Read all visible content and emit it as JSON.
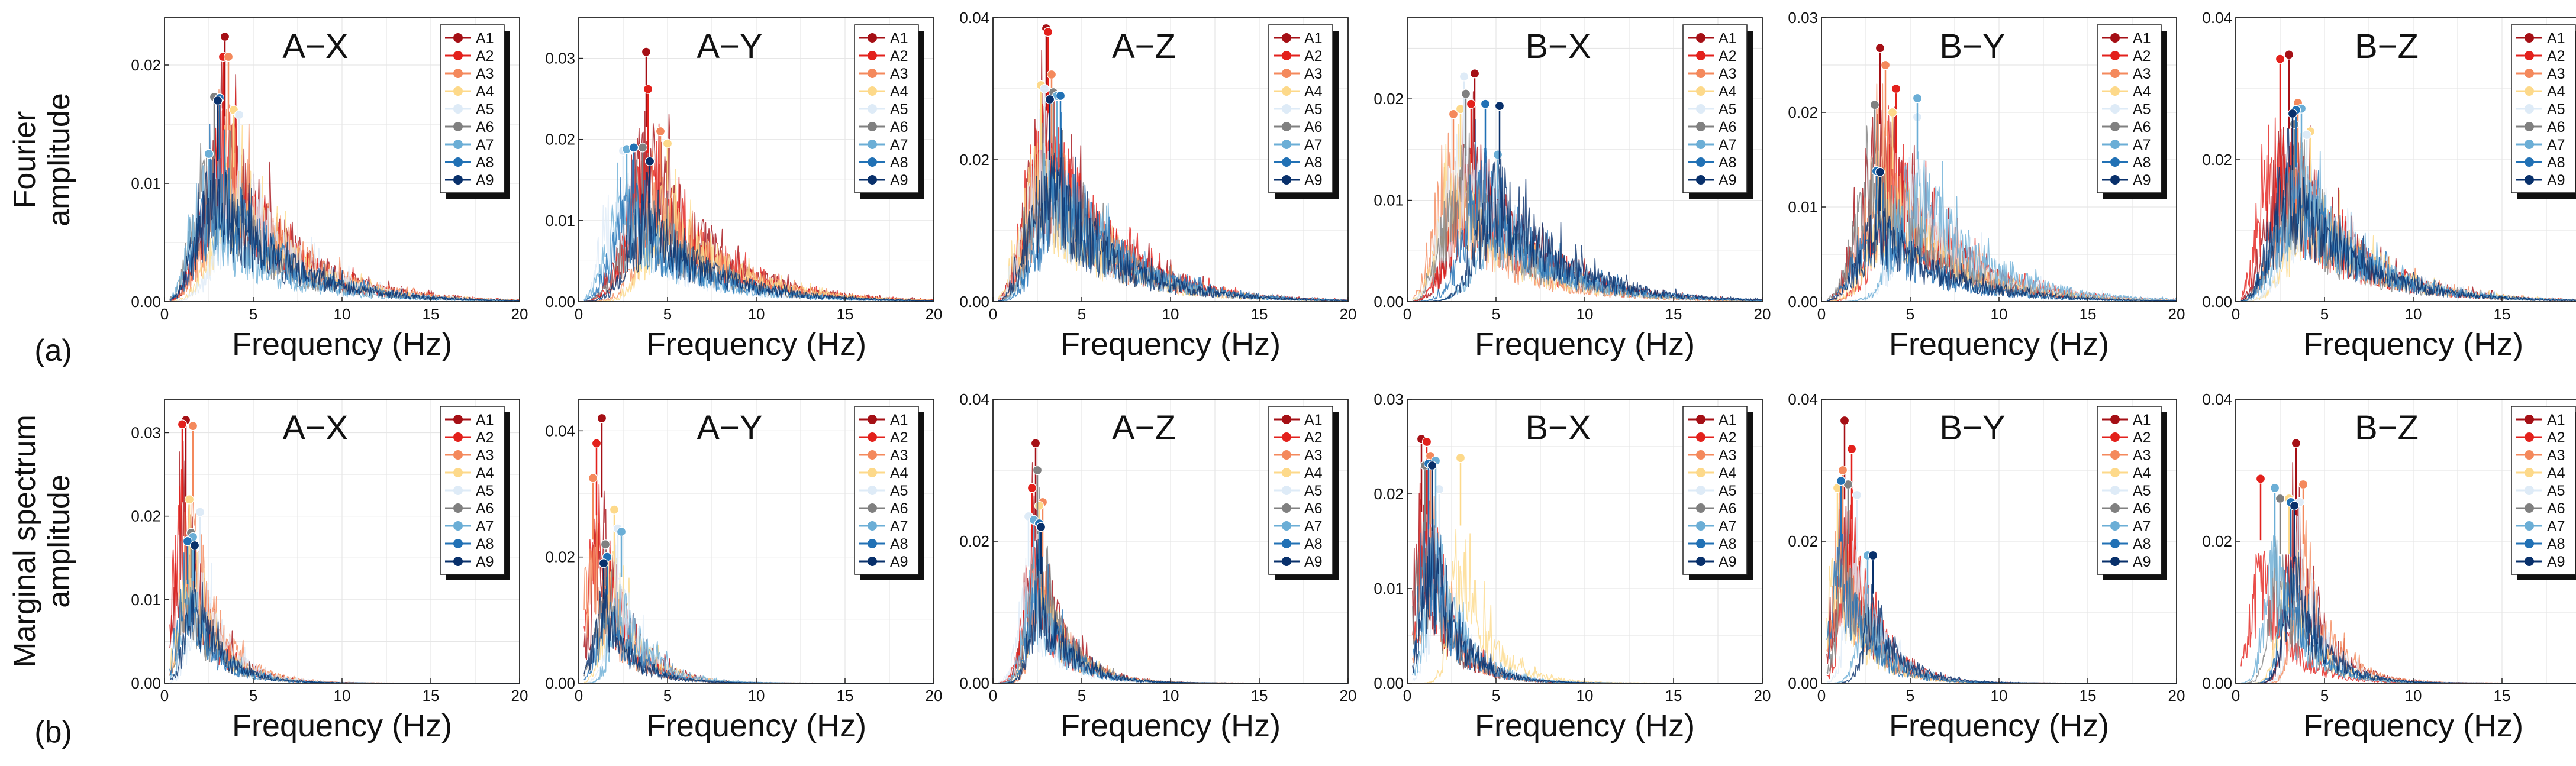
{
  "figure": {
    "row_labels": [
      {
        "label_lines": [
          "Fourier",
          "amplitude"
        ],
        "panel_tag": "(a)"
      },
      {
        "label_lines": [
          "Marginal spectrum",
          "amplitude"
        ],
        "panel_tag": "(b)"
      }
    ],
    "xlabel": "Frequency (Hz)",
    "legend_entries": [
      "A1",
      "A2",
      "A3",
      "A4",
      "A5",
      "A6",
      "A7",
      "A8",
      "A9"
    ]
  },
  "series_colors": [
    "#a50f15",
    "#e3211c",
    "#f4895c",
    "#fdd98a",
    "#deebf7",
    "#808080",
    "#6baed6",
    "#2171b5",
    "#08306b"
  ],
  "chart_data": [
    {
      "type": "line",
      "title": "A−X",
      "row": 0,
      "xlim": [
        0,
        20
      ],
      "ylim": [
        0,
        0.024
      ],
      "xticks": [
        0,
        5,
        10,
        15,
        20
      ],
      "yticks": [
        0,
        0.01,
        0.02
      ],
      "ytick_labels": [
        "0.00",
        "0.01",
        "0.02"
      ],
      "grid": true,
      "legend": "top-right",
      "peaks": [
        {
          "s": "A1",
          "x": 3.4,
          "y": 0.0224
        },
        {
          "s": "A2",
          "x": 3.3,
          "y": 0.0207
        },
        {
          "s": "A3",
          "x": 3.6,
          "y": 0.0207
        },
        {
          "s": "A4",
          "x": 3.9,
          "y": 0.0162
        },
        {
          "s": "A5",
          "x": 4.2,
          "y": 0.0158
        },
        {
          "s": "A6",
          "x": 2.8,
          "y": 0.0173
        },
        {
          "s": "A7",
          "x": 2.5,
          "y": 0.0125
        },
        {
          "s": "A8",
          "x": 3.1,
          "y": 0.0172
        },
        {
          "s": "A9",
          "x": 3.0,
          "y": 0.017
        }
      ]
    },
    {
      "type": "line",
      "title": "A−Y",
      "row": 0,
      "xlim": [
        0,
        20
      ],
      "ylim": [
        0,
        0.035
      ],
      "xticks": [
        0,
        5,
        10,
        15,
        20
      ],
      "yticks": [
        0,
        0.01,
        0.02,
        0.03
      ],
      "ytick_labels": [
        "0.00",
        "0.01",
        "0.02",
        "0.03"
      ],
      "grid": true,
      "legend": "top-right",
      "peaks": [
        {
          "s": "A1",
          "x": 3.8,
          "y": 0.0308
        },
        {
          "s": "A2",
          "x": 3.9,
          "y": 0.0262
        },
        {
          "s": "A3",
          "x": 4.6,
          "y": 0.021
        },
        {
          "s": "A4",
          "x": 5.0,
          "y": 0.0195
        },
        {
          "s": "A5",
          "x": 2.5,
          "y": 0.0186
        },
        {
          "s": "A6",
          "x": 3.6,
          "y": 0.019
        },
        {
          "s": "A7",
          "x": 2.7,
          "y": 0.0188
        },
        {
          "s": "A8",
          "x": 3.1,
          "y": 0.019
        },
        {
          "s": "A9",
          "x": 4.0,
          "y": 0.0173
        }
      ]
    },
    {
      "type": "line",
      "title": "A−Z",
      "row": 0,
      "xlim": [
        0,
        20
      ],
      "ylim": [
        0,
        0.04
      ],
      "xticks": [
        0,
        5,
        10,
        15,
        20
      ],
      "yticks": [
        0,
        0.02,
        0.04
      ],
      "ytick_labels": [
        "0.00",
        "0.02",
        "0.04"
      ],
      "grid": true,
      "legend": "top-right",
      "peaks": [
        {
          "s": "A1",
          "x": 3.0,
          "y": 0.0385
        },
        {
          "s": "A2",
          "x": 3.1,
          "y": 0.038
        },
        {
          "s": "A3",
          "x": 3.3,
          "y": 0.032
        },
        {
          "s": "A4",
          "x": 2.7,
          "y": 0.0305
        },
        {
          "s": "A5",
          "x": 2.9,
          "y": 0.03
        },
        {
          "s": "A6",
          "x": 3.4,
          "y": 0.0295
        },
        {
          "s": "A7",
          "x": 3.6,
          "y": 0.029
        },
        {
          "s": "A8",
          "x": 3.8,
          "y": 0.029
        },
        {
          "s": "A9",
          "x": 3.2,
          "y": 0.0285
        }
      ]
    },
    {
      "type": "line",
      "title": "B−X",
      "row": 0,
      "xlim": [
        0,
        20
      ],
      "ylim": [
        0,
        0.028
      ],
      "xticks": [
        0,
        5,
        10,
        15,
        20
      ],
      "yticks": [
        0,
        0.01,
        0.02
      ],
      "ytick_labels": [
        "0.00",
        "0.01",
        "0.02"
      ],
      "grid": true,
      "legend": "top-right",
      "peaks": [
        {
          "s": "A1",
          "x": 3.8,
          "y": 0.0225
        },
        {
          "s": "A2",
          "x": 3.6,
          "y": 0.0195
        },
        {
          "s": "A3",
          "x": 2.6,
          "y": 0.0185
        },
        {
          "s": "A4",
          "x": 3.0,
          "y": 0.019
        },
        {
          "s": "A5",
          "x": 3.2,
          "y": 0.0222
        },
        {
          "s": "A6",
          "x": 3.3,
          "y": 0.0205
        },
        {
          "s": "A7",
          "x": 5.1,
          "y": 0.0145
        },
        {
          "s": "A8",
          "x": 4.4,
          "y": 0.0195
        },
        {
          "s": "A9",
          "x": 5.2,
          "y": 0.0193
        }
      ]
    },
    {
      "type": "line",
      "title": "B−Y",
      "row": 0,
      "xlim": [
        0,
        20
      ],
      "ylim": [
        0,
        0.03
      ],
      "xticks": [
        0,
        5,
        10,
        15,
        20
      ],
      "yticks": [
        0,
        0.01,
        0.02,
        0.03
      ],
      "ytick_labels": [
        "0.00",
        "0.01",
        "0.02",
        "0.03"
      ],
      "grid": true,
      "legend": "top-right",
      "peaks": [
        {
          "s": "A1",
          "x": 3.3,
          "y": 0.0268
        },
        {
          "s": "A2",
          "x": 4.2,
          "y": 0.0225
        },
        {
          "s": "A3",
          "x": 3.6,
          "y": 0.025
        },
        {
          "s": "A4",
          "x": 4.0,
          "y": 0.02
        },
        {
          "s": "A5",
          "x": 5.4,
          "y": 0.0195
        },
        {
          "s": "A6",
          "x": 3.0,
          "y": 0.0208
        },
        {
          "s": "A7",
          "x": 5.4,
          "y": 0.0215
        },
        {
          "s": "A8",
          "x": 3.1,
          "y": 0.0138
        },
        {
          "s": "A9",
          "x": 3.3,
          "y": 0.0137
        }
      ]
    },
    {
      "type": "line",
      "title": "B−Z",
      "row": 0,
      "xlim": [
        0,
        20
      ],
      "ylim": [
        0,
        0.04
      ],
      "xticks": [
        0,
        5,
        10,
        15,
        20
      ],
      "yticks": [
        0,
        0.02,
        0.04
      ],
      "ytick_labels": [
        "0.00",
        "0.02",
        "0.04"
      ],
      "grid": true,
      "legend": "top-right",
      "peaks": [
        {
          "s": "A1",
          "x": 3.0,
          "y": 0.0348
        },
        {
          "s": "A2",
          "x": 2.5,
          "y": 0.0342
        },
        {
          "s": "A3",
          "x": 3.5,
          "y": 0.028
        },
        {
          "s": "A4",
          "x": 4.2,
          "y": 0.024
        },
        {
          "s": "A5",
          "x": 4.0,
          "y": 0.0235
        },
        {
          "s": "A6",
          "x": 3.3,
          "y": 0.025
        },
        {
          "s": "A7",
          "x": 3.7,
          "y": 0.0272
        },
        {
          "s": "A8",
          "x": 3.4,
          "y": 0.027
        },
        {
          "s": "A9",
          "x": 3.2,
          "y": 0.0265
        }
      ]
    },
    {
      "type": "line",
      "title": "A−X",
      "row": 1,
      "xlim": [
        0,
        20
      ],
      "ylim": [
        0,
        0.034
      ],
      "xticks": [
        0,
        5,
        10,
        15,
        20
      ],
      "yticks": [
        0,
        0.01,
        0.02,
        0.03
      ],
      "ytick_labels": [
        "0.00",
        "0.01",
        "0.02",
        "0.03"
      ],
      "grid": true,
      "legend": "top-right",
      "peaks": [
        {
          "s": "A1",
          "x": 1.2,
          "y": 0.0315
        },
        {
          "s": "A2",
          "x": 1.0,
          "y": 0.031
        },
        {
          "s": "A3",
          "x": 1.6,
          "y": 0.0308
        },
        {
          "s": "A4",
          "x": 1.4,
          "y": 0.022
        },
        {
          "s": "A5",
          "x": 2.0,
          "y": 0.0205
        },
        {
          "s": "A6",
          "x": 1.5,
          "y": 0.018
        },
        {
          "s": "A7",
          "x": 1.6,
          "y": 0.0175
        },
        {
          "s": "A8",
          "x": 1.3,
          "y": 0.017
        },
        {
          "s": "A9",
          "x": 1.7,
          "y": 0.0165
        }
      ]
    },
    {
      "type": "line",
      "title": "A−Y",
      "row": 1,
      "xlim": [
        0,
        20
      ],
      "ylim": [
        0,
        0.045
      ],
      "xticks": [
        0,
        5,
        10,
        15,
        20
      ],
      "yticks": [
        0,
        0.02,
        0.04
      ],
      "ytick_labels": [
        "0.00",
        "0.02",
        "0.04"
      ],
      "grid": true,
      "legend": "top-right",
      "peaks": [
        {
          "s": "A1",
          "x": 1.3,
          "y": 0.042
        },
        {
          "s": "A2",
          "x": 1.0,
          "y": 0.038
        },
        {
          "s": "A3",
          "x": 0.8,
          "y": 0.0325
        },
        {
          "s": "A4",
          "x": 2.0,
          "y": 0.0275
        },
        {
          "s": "A5",
          "x": 2.2,
          "y": 0.0245
        },
        {
          "s": "A6",
          "x": 1.5,
          "y": 0.022
        },
        {
          "s": "A7",
          "x": 2.4,
          "y": 0.024
        },
        {
          "s": "A8",
          "x": 1.6,
          "y": 0.02
        },
        {
          "s": "A9",
          "x": 1.4,
          "y": 0.019
        }
      ]
    },
    {
      "type": "line",
      "title": "A−Z",
      "row": 1,
      "xlim": [
        0,
        20
      ],
      "ylim": [
        0,
        0.04
      ],
      "xticks": [
        0,
        5,
        10,
        15,
        20
      ],
      "yticks": [
        0,
        0.02,
        0.04
      ],
      "ytick_labels": [
        "0.00",
        "0.02",
        "0.04"
      ],
      "grid": true,
      "legend": "top-right",
      "peaks": [
        {
          "s": "A1",
          "x": 2.4,
          "y": 0.0338
        },
        {
          "s": "A2",
          "x": 2.2,
          "y": 0.0275
        },
        {
          "s": "A3",
          "x": 2.8,
          "y": 0.0255
        },
        {
          "s": "A4",
          "x": 2.6,
          "y": 0.025
        },
        {
          "s": "A5",
          "x": 2.0,
          "y": 0.0235
        },
        {
          "s": "A6",
          "x": 2.5,
          "y": 0.03
        },
        {
          "s": "A7",
          "x": 2.3,
          "y": 0.023
        },
        {
          "s": "A8",
          "x": 2.6,
          "y": 0.0225
        },
        {
          "s": "A9",
          "x": 2.7,
          "y": 0.022
        }
      ]
    },
    {
      "type": "line",
      "title": "B−X",
      "row": 1,
      "xlim": [
        0,
        20
      ],
      "ylim": [
        0,
        0.03
      ],
      "xticks": [
        0,
        5,
        10,
        15,
        20
      ],
      "yticks": [
        0,
        0.01,
        0.02,
        0.03
      ],
      "ytick_labels": [
        "0.00",
        "0.01",
        "0.02",
        "0.03"
      ],
      "grid": true,
      "legend": "top-right",
      "peaks": [
        {
          "s": "A1",
          "x": 0.8,
          "y": 0.0258
        },
        {
          "s": "A2",
          "x": 1.1,
          "y": 0.0255
        },
        {
          "s": "A3",
          "x": 1.3,
          "y": 0.024
        },
        {
          "s": "A4",
          "x": 3.0,
          "y": 0.0238
        },
        {
          "s": "A5",
          "x": 1.8,
          "y": 0.0205
        },
        {
          "s": "A6",
          "x": 1.0,
          "y": 0.023
        },
        {
          "s": "A7",
          "x": 1.6,
          "y": 0.0235
        },
        {
          "s": "A8",
          "x": 1.2,
          "y": 0.0232
        },
        {
          "s": "A9",
          "x": 1.4,
          "y": 0.023
        }
      ]
    },
    {
      "type": "line",
      "title": "B−Y",
      "row": 1,
      "xlim": [
        0,
        20
      ],
      "ylim": [
        0,
        0.04
      ],
      "xticks": [
        0,
        5,
        10,
        15,
        20
      ],
      "yticks": [
        0,
        0.02,
        0.04
      ],
      "ytick_labels": [
        "0.00",
        "0.02",
        "0.04"
      ],
      "grid": true,
      "legend": "top-right",
      "peaks": [
        {
          "s": "A1",
          "x": 1.3,
          "y": 0.037
        },
        {
          "s": "A2",
          "x": 1.7,
          "y": 0.033
        },
        {
          "s": "A3",
          "x": 1.2,
          "y": 0.03
        },
        {
          "s": "A4",
          "x": 0.9,
          "y": 0.0275
        },
        {
          "s": "A5",
          "x": 2.0,
          "y": 0.0265
        },
        {
          "s": "A6",
          "x": 1.5,
          "y": 0.028
        },
        {
          "s": "A7",
          "x": 2.6,
          "y": 0.018
        },
        {
          "s": "A8",
          "x": 1.1,
          "y": 0.0285
        },
        {
          "s": "A9",
          "x": 2.9,
          "y": 0.018
        }
      ]
    },
    {
      "type": "line",
      "title": "B−Z",
      "row": 1,
      "xlim": [
        0,
        20
      ],
      "ylim": [
        0,
        0.04
      ],
      "xticks": [
        0,
        5,
        10,
        15,
        20
      ],
      "yticks": [
        0,
        0.02,
        0.04
      ],
      "ytick_labels": [
        "0.00",
        "0.02",
        "0.04"
      ],
      "grid": true,
      "legend": "top-right",
      "peaks": [
        {
          "s": "A1",
          "x": 3.4,
          "y": 0.0338
        },
        {
          "s": "A2",
          "x": 1.4,
          "y": 0.0288
        },
        {
          "s": "A3",
          "x": 3.8,
          "y": 0.028
        },
        {
          "s": "A4",
          "x": 3.0,
          "y": 0.026
        },
        {
          "s": "A5",
          "x": 3.6,
          "y": 0.0255
        },
        {
          "s": "A6",
          "x": 2.5,
          "y": 0.026
        },
        {
          "s": "A7",
          "x": 2.2,
          "y": 0.0275
        },
        {
          "s": "A8",
          "x": 3.1,
          "y": 0.0255
        },
        {
          "s": "A9",
          "x": 3.3,
          "y": 0.025
        }
      ]
    }
  ]
}
